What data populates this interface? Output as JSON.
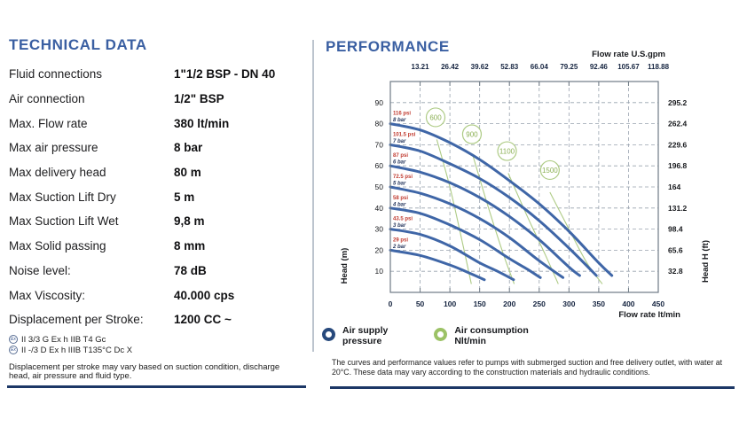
{
  "tech": {
    "title": "TECHNICAL DATA",
    "rows": [
      {
        "label": "Fluid connections",
        "value": "1\"1/2 BSP - DN 40"
      },
      {
        "label": "Air connection",
        "value": "1/2\" BSP"
      },
      {
        "label": "Max. Flow rate",
        "value": "380 lt/min"
      },
      {
        "label": "Max air pressure",
        "value": "8 bar"
      },
      {
        "label": "Max delivery head",
        "value": "80 m"
      },
      {
        "label": "Max Suction Lift Dry",
        "value": "5 m"
      },
      {
        "label": "Max Suction Lift Wet",
        "value": "9,8 m"
      },
      {
        "label": "Max Solid passing",
        "value": "8 mm"
      },
      {
        "label": "Noise level:",
        "value": "78 dB"
      },
      {
        "label": "Max Viscosity:",
        "value": "40.000 cps"
      },
      {
        "label": "Displacement per Stroke:",
        "value": "1200 CC ~"
      }
    ],
    "atex": [
      {
        "icon": "Ex",
        "text": "II 3/3 G Ex h IIB T4 Gc"
      },
      {
        "icon": "Ex",
        "text": "II -/3 D Ex h IIIB T135°C Dc X"
      }
    ],
    "note": "Displacement per stroke may vary based on suction condition, discharge head, air pressure and fluid type."
  },
  "performance": {
    "title": "PERFORMANCE",
    "legend": [
      {
        "icon": "blue-ring",
        "line1": "Air supply",
        "line2": "pressure"
      },
      {
        "icon": "green-ring",
        "line1": "Air consumption",
        "line2": "Nlt/min"
      }
    ],
    "note": "The curves and performance values refer to pumps with submerged suction and free delivery outlet, with water at 20°C. These data may vary according to the construction materials and hydraulic conditions."
  },
  "chart_data": {
    "type": "line",
    "x_top_label": "Flow rate U.S.gpm",
    "x_bottom_label": "Flow rate  lt/min",
    "y_left_label": "Head (m)",
    "y_right_label": "Head H (ft)",
    "xlim": [
      0,
      450
    ],
    "ylim": [
      0,
      100
    ],
    "grid": true,
    "x_ticks_bottom": [
      0,
      50,
      100,
      150,
      200,
      250,
      300,
      350,
      400,
      450
    ],
    "x_ticks_top": [
      {
        "pos": 50,
        "label": "13.21"
      },
      {
        "pos": 100,
        "label": "26.42"
      },
      {
        "pos": 150,
        "label": "39.62"
      },
      {
        "pos": 200,
        "label": "52.83"
      },
      {
        "pos": 250,
        "label": "66.04"
      },
      {
        "pos": 300,
        "label": "79.25"
      },
      {
        "pos": 350,
        "label": "92.46"
      },
      {
        "pos": 400,
        "label": "105.67"
      },
      {
        "pos": 450,
        "label": "118.88"
      }
    ],
    "y_ticks_left": [
      10,
      20,
      30,
      40,
      50,
      60,
      70,
      80,
      90
    ],
    "y_ticks_right": [
      {
        "pos": 10,
        "label": "32.8"
      },
      {
        "pos": 20,
        "label": "65.6"
      },
      {
        "pos": 30,
        "label": "98.4"
      },
      {
        "pos": 40,
        "label": "131.2"
      },
      {
        "pos": 50,
        "label": "164"
      },
      {
        "pos": 60,
        "label": "196.8"
      },
      {
        "pos": 70,
        "label": "229.6"
      },
      {
        "pos": 80,
        "label": "262.4"
      },
      {
        "pos": 90,
        "label": "295.2"
      }
    ],
    "series": [
      {
        "name": "8 bar",
        "psi": "116 psi",
        "points": [
          [
            0,
            80
          ],
          [
            50,
            77
          ],
          [
            100,
            71
          ],
          [
            150,
            63
          ],
          [
            200,
            53
          ],
          [
            250,
            42
          ],
          [
            300,
            29
          ],
          [
            350,
            14
          ],
          [
            372,
            8
          ]
        ]
      },
      {
        "name": "7 bar",
        "psi": "101.5 psi",
        "points": [
          [
            0,
            70
          ],
          [
            50,
            67
          ],
          [
            100,
            61
          ],
          [
            150,
            54
          ],
          [
            200,
            45
          ],
          [
            250,
            34
          ],
          [
            300,
            21
          ],
          [
            346,
            8
          ]
        ]
      },
      {
        "name": "6 bar",
        "psi": "87 psi",
        "points": [
          [
            0,
            60
          ],
          [
            50,
            57
          ],
          [
            100,
            52
          ],
          [
            150,
            45
          ],
          [
            200,
            36
          ],
          [
            250,
            25
          ],
          [
            300,
            12
          ],
          [
            318,
            8
          ]
        ]
      },
      {
        "name": "5 bar",
        "psi": "72.5 psi",
        "points": [
          [
            0,
            50
          ],
          [
            50,
            47
          ],
          [
            100,
            42
          ],
          [
            150,
            35
          ],
          [
            200,
            26
          ],
          [
            250,
            15
          ],
          [
            290,
            7
          ]
        ]
      },
      {
        "name": "4 bar",
        "psi": "58 psi",
        "points": [
          [
            0,
            40
          ],
          [
            50,
            37.5
          ],
          [
            100,
            32
          ],
          [
            150,
            25
          ],
          [
            200,
            16
          ],
          [
            230,
            11
          ],
          [
            252,
            7
          ]
        ]
      },
      {
        "name": "3 bar",
        "psi": "43.5 psi",
        "points": [
          [
            0,
            30
          ],
          [
            50,
            27.5
          ],
          [
            100,
            22
          ],
          [
            150,
            14
          ],
          [
            180,
            10
          ],
          [
            207,
            6
          ]
        ]
      },
      {
        "name": "2 bar",
        "psi": "29 psi",
        "points": [
          [
            0,
            20
          ],
          [
            50,
            17.5
          ],
          [
            100,
            13
          ],
          [
            130,
            9.5
          ],
          [
            158,
            6
          ]
        ]
      }
    ],
    "air_consumption": [
      {
        "value": "600",
        "circle": [
          76,
          83
        ],
        "line": [
          [
            78,
            72.5
          ],
          [
            100,
            50
          ],
          [
            120,
            25
          ],
          [
            136,
            4
          ]
        ]
      },
      {
        "value": "900",
        "circle": [
          137,
          75
        ],
        "line": [
          [
            139,
            64.5
          ],
          [
            165,
            40
          ],
          [
            190,
            18
          ],
          [
            208,
            4
          ]
        ]
      },
      {
        "value": "1100",
        "circle": [
          196,
          67
        ],
        "line": [
          [
            198,
            56.5
          ],
          [
            230,
            36
          ],
          [
            260,
            18
          ],
          [
            282,
            4
          ]
        ]
      },
      {
        "value": "1500",
        "circle": [
          268,
          58
        ],
        "line": [
          [
            268,
            47.5
          ],
          [
            300,
            30
          ],
          [
            330,
            14
          ],
          [
            356,
            4
          ]
        ]
      }
    ],
    "colors": {
      "curve_blue": "#3f66a7",
      "green": "#aecb85",
      "green_text": "#8bb054",
      "psi_red": "#c13b30",
      "bar_navy": "#26375e",
      "grid": "#98a2ae",
      "border": "#6f7a85",
      "tick_dark": "#14233f",
      "heading_blue": "#3a5fa2",
      "rule_navy": "#1c3766"
    }
  }
}
